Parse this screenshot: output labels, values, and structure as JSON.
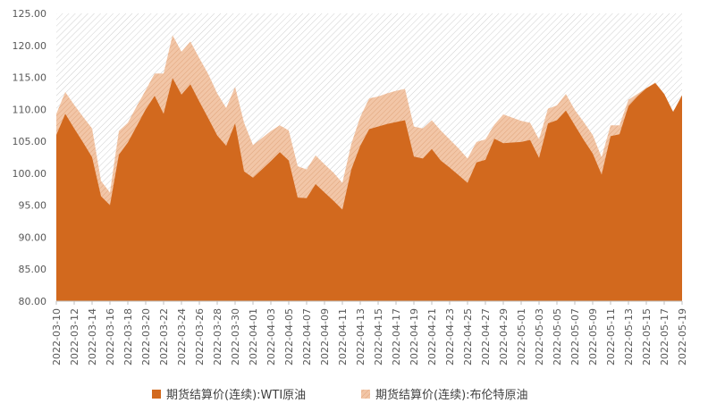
{
  "chart_data": {
    "type": "area",
    "title": "",
    "xlabel": "",
    "ylabel": "",
    "ylim": [
      80,
      125
    ],
    "y_ticks": [
      "80.00",
      "85.00",
      "90.00",
      "95.00",
      "100.00",
      "105.00",
      "110.00",
      "115.00",
      "120.00",
      "125.00"
    ],
    "grid": false,
    "legend_position": "bottom",
    "x_tick_labels": [
      "2022-03-10",
      "2022-03-12",
      "2022-03-14",
      "2022-03-16",
      "2022-03-18",
      "2022-03-20",
      "2022-03-22",
      "2022-03-24",
      "2022-03-26",
      "2022-03-28",
      "2022-03-30",
      "2022-04-01",
      "2022-04-03",
      "2022-04-05",
      "2022-04-07",
      "2022-04-09",
      "2022-04-11",
      "2022-04-13",
      "2022-04-15",
      "2022-04-17",
      "2022-04-19",
      "2022-04-21",
      "2022-04-23",
      "2022-04-25",
      "2022-04-27",
      "2022-04-29",
      "2022-05-01",
      "2022-05-03",
      "2022-05-05",
      "2022-05-07",
      "2022-05-09",
      "2022-05-11",
      "2022-05-13",
      "2022-05-15",
      "2022-05-17",
      "2022-05-19"
    ],
    "x": [
      "2022-03-10",
      "2022-03-11",
      "2022-03-12",
      "2022-03-13",
      "2022-03-14",
      "2022-03-15",
      "2022-03-16",
      "2022-03-17",
      "2022-03-18",
      "2022-03-19",
      "2022-03-20",
      "2022-03-21",
      "2022-03-22",
      "2022-03-23",
      "2022-03-24",
      "2022-03-25",
      "2022-03-26",
      "2022-03-27",
      "2022-03-28",
      "2022-03-29",
      "2022-03-30",
      "2022-03-31",
      "2022-04-01",
      "2022-04-02",
      "2022-04-03",
      "2022-04-04",
      "2022-04-05",
      "2022-04-06",
      "2022-04-07",
      "2022-04-08",
      "2022-04-09",
      "2022-04-10",
      "2022-04-11",
      "2022-04-12",
      "2022-04-13",
      "2022-04-14",
      "2022-04-15",
      "2022-04-16",
      "2022-04-17",
      "2022-04-18",
      "2022-04-19",
      "2022-04-20",
      "2022-04-21",
      "2022-04-22",
      "2022-04-23",
      "2022-04-24",
      "2022-04-25",
      "2022-04-26",
      "2022-04-27",
      "2022-04-28",
      "2022-04-29",
      "2022-04-30",
      "2022-05-01",
      "2022-05-02",
      "2022-05-03",
      "2022-05-04",
      "2022-05-05",
      "2022-05-06",
      "2022-05-07",
      "2022-05-08",
      "2022-05-09",
      "2022-05-10",
      "2022-05-11",
      "2022-05-12",
      "2022-05-13",
      "2022-05-14",
      "2022-05-15",
      "2022-05-16",
      "2022-05-17",
      "2022-05-18",
      "2022-05-19"
    ],
    "series": [
      {
        "name": "期货结算价(连续):WTI原油",
        "color": "#D2691E",
        "values": [
          106.0,
          109.3,
          107.0,
          104.8,
          102.5,
          96.4,
          95.0,
          102.9,
          104.8,
          107.4,
          110.0,
          112.1,
          109.3,
          114.9,
          112.3,
          113.9,
          111.2,
          108.6,
          105.9,
          104.3,
          107.8,
          100.3,
          99.3,
          100.6,
          101.9,
          103.3,
          102.0,
          96.2,
          96.1,
          98.3,
          97.0,
          95.7,
          94.3,
          100.6,
          104.3,
          106.9,
          107.3,
          107.7,
          108.0,
          108.3,
          102.6,
          102.3,
          103.8,
          102.0,
          100.9,
          99.7,
          98.5,
          101.7,
          102.1,
          105.4,
          104.7,
          104.8,
          104.9,
          105.2,
          102.4,
          107.8,
          108.3,
          109.8,
          107.5,
          105.2,
          103.1,
          99.8,
          105.8,
          106.1,
          110.5,
          112.0,
          113.3,
          114.1,
          112.4,
          109.6,
          112.2
        ]
      },
      {
        "name": "期货结算价(连续):布伦特原油",
        "color": "#F2C6A7",
        "values": [
          109.3,
          112.7,
          110.7,
          108.8,
          107.0,
          98.8,
          97.0,
          106.6,
          107.9,
          110.5,
          113.0,
          115.6,
          115.6,
          121.6,
          119.0,
          120.6,
          118.0,
          115.5,
          112.5,
          110.2,
          113.5,
          107.9,
          104.4,
          105.5,
          106.6,
          107.5,
          106.7,
          101.1,
          100.6,
          102.8,
          101.4,
          100.1,
          98.5,
          104.6,
          108.8,
          111.7,
          112.0,
          112.5,
          112.9,
          113.2,
          107.3,
          107.0,
          108.3,
          106.7,
          105.3,
          103.9,
          102.3,
          104.9,
          105.3,
          107.6,
          109.2,
          108.7,
          108.2,
          107.9,
          105.3,
          110.1,
          110.6,
          112.4,
          109.9,
          108.0,
          106.0,
          102.5,
          107.5,
          107.5,
          111.5,
          112.4,
          113.3,
          114.2,
          112.4,
          109.6,
          112.2
        ]
      }
    ]
  },
  "colors": {
    "wti": "#D2691E",
    "brent": "#F2C6A7",
    "hatch": "#C8C8C8",
    "axis": "#BFBFBF",
    "tick_text": "#595959"
  }
}
